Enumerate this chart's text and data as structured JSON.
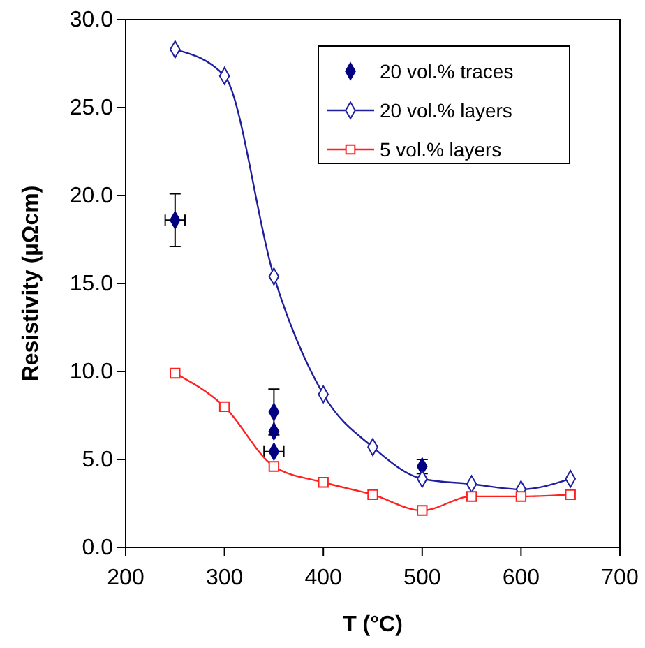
{
  "chart_data": {
    "type": "line",
    "xlabel": "T (°C)",
    "ylabel": "Resistivity (µΩcm)",
    "xlim": [
      200,
      700
    ],
    "xticks": [
      200,
      300,
      400,
      500,
      600,
      700
    ],
    "ylim": [
      0,
      30
    ],
    "yticks": [
      {
        "value": 0,
        "label": "0.0"
      },
      {
        "value": 5,
        "label": "5.0"
      },
      {
        "value": 10,
        "label": "10.0"
      },
      {
        "value": 15,
        "label": "15.0"
      },
      {
        "value": 20,
        "label": "20.0"
      },
      {
        "value": 25,
        "label": "25.0"
      },
      {
        "value": 30,
        "label": "30.0"
      }
    ],
    "grid": false,
    "legend": "top right",
    "series": [
      {
        "name": "20 vol.% traces",
        "type": "scatter",
        "color": "#000080",
        "marker": "diamond",
        "x": [
          250,
          350,
          350,
          350,
          500
        ],
        "values": [
          18.6,
          7.7,
          6.6,
          5.45,
          4.6
        ],
        "errors": [
          1.5,
          1.3,
          null,
          null,
          0.4
        ],
        "xerrors": [
          10,
          null,
          null,
          10,
          null
        ]
      },
      {
        "name": "20 vol.% layers",
        "color": "#1f1f9e",
        "marker": "diamond",
        "x": [
          250,
          300,
          350,
          400,
          450,
          500,
          550,
          600,
          650
        ],
        "values": [
          28.3,
          26.8,
          15.4,
          8.7,
          5.7,
          3.9,
          3.6,
          3.3,
          3.9
        ]
      },
      {
        "name": "5 vol.% layers",
        "color": "#ff2020",
        "marker": "square",
        "x": [
          250,
          300,
          350,
          400,
          450,
          500,
          550,
          600,
          650
        ],
        "values": [
          9.9,
          8.0,
          4.6,
          3.7,
          3.0,
          2.1,
          2.9,
          2.9,
          3.0
        ]
      }
    ]
  }
}
